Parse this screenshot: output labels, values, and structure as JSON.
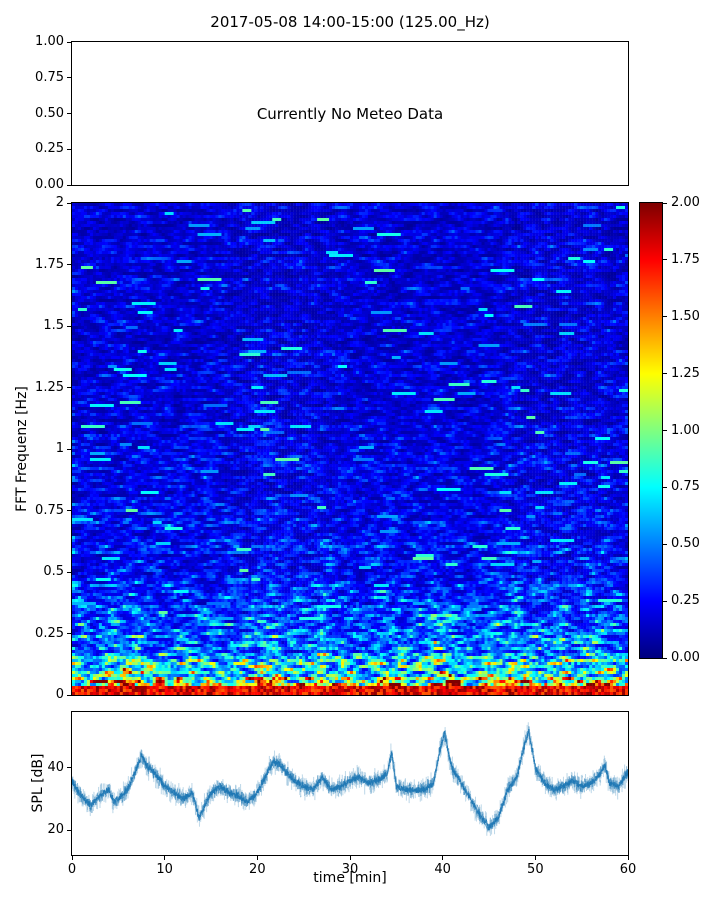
{
  "figure_title": "2017-05-08 14:00-15:00 (125.00_Hz)",
  "colors": {
    "line": "#1f77b4",
    "axes_edge": "#000000",
    "background": "#ffffff"
  },
  "chart_data": [
    {
      "type": "text",
      "panel": "meteo",
      "annotation": "Currently No Meteo Data",
      "ylim": [
        0.0,
        1.0
      ],
      "ytick_values": [
        1.0,
        0.75,
        0.5,
        0.25,
        0.0
      ],
      "yticklabels": [
        "1.00",
        "0.75",
        "0.50",
        "0.25",
        "0.00"
      ],
      "grid": false
    },
    {
      "type": "heatmap",
      "panel": "spectrogram",
      "ylabel": "FFT Frequenz [Hz]",
      "xlim": [
        0,
        60
      ],
      "ylim": [
        0,
        2
      ],
      "ytick_values": [
        2,
        1.75,
        1.5,
        1.25,
        1,
        0.75,
        0.5,
        0.25,
        0
      ],
      "yticklabels": [
        "2",
        "1.75",
        "1.5",
        "1.25",
        "1",
        "0.75",
        "0.5",
        "0.25",
        "0"
      ],
      "colormap": "jet",
      "clim": [
        0.0,
        2.0
      ],
      "colorbar_tick_values": [
        2.0,
        1.75,
        1.5,
        1.25,
        1.0,
        0.75,
        0.5,
        0.25,
        0.0
      ],
      "colorbar_ticklabels": [
        "2.00",
        "1.75",
        "1.50",
        "1.25",
        "1.00",
        "0.75",
        "0.50",
        "0.25",
        "0.00"
      ],
      "freq_profile": [
        [
          0,
          1.9
        ],
        [
          0.02,
          1.55
        ],
        [
          0.05,
          1.05
        ],
        [
          0.1,
          0.8
        ],
        [
          0.2,
          0.58
        ],
        [
          0.3,
          0.46
        ],
        [
          0.5,
          0.34
        ],
        [
          0.75,
          0.29
        ],
        [
          1.0,
          0.27
        ],
        [
          1.5,
          0.24
        ],
        [
          2.0,
          0.22
        ]
      ],
      "time_bursts": [
        {
          "c": 4,
          "w": 1.5,
          "a": 0.35
        },
        {
          "c": 7,
          "w": 2,
          "a": 0.55
        },
        {
          "c": 13,
          "w": 1,
          "a": 0.35
        },
        {
          "c": 21,
          "w": 2,
          "a": 0.5
        },
        {
          "c": 27,
          "w": 1.5,
          "a": 0.5
        },
        {
          "c": 34,
          "w": 1.5,
          "a": 0.4
        },
        {
          "c": 40,
          "w": 1.5,
          "a": 0.6
        },
        {
          "c": 48,
          "w": 2.5,
          "a": 0.6
        },
        {
          "c": 53,
          "w": 1,
          "a": 0.3
        },
        {
          "c": 57,
          "w": 1.5,
          "a": 0.5
        }
      ],
      "description": "FFT spectrogram: mostly 0.1-0.4 (dark/medium blue) above 0.5 Hz with sporadic cyan streaks; values rise toward low frequencies reaching 1.5-2.0 (orange/dark red) below 0.1 Hz; intermittent yellow/green bursts up to ~0.5 Hz."
    },
    {
      "type": "line",
      "panel": "spl",
      "ylabel": "SPL [dB]",
      "xlabel": "time [min]",
      "xlim": [
        0,
        60
      ],
      "ylim": [
        12,
        58
      ],
      "ytick_values": [
        40,
        20
      ],
      "yticklabels": [
        "40",
        "20"
      ],
      "xtick_values": [
        0,
        10,
        20,
        30,
        40,
        50,
        60
      ],
      "xticklabels": [
        "0",
        "10",
        "20",
        "30",
        "40",
        "50",
        "60"
      ],
      "series": [
        {
          "name": "SPL",
          "noise_band_db": 2.5,
          "anchors": [
            [
              0,
              36
            ],
            [
              0.5,
              33
            ],
            [
              1,
              31
            ],
            [
              2,
              28
            ],
            [
              3,
              31
            ],
            [
              4,
              33
            ],
            [
              4.5,
              29
            ],
            [
              5,
              30
            ],
            [
              6,
              33
            ],
            [
              7,
              40
            ],
            [
              7.5,
              44
            ],
            [
              8,
              41
            ],
            [
              9,
              38
            ],
            [
              10,
              34
            ],
            [
              11,
              32
            ],
            [
              12,
              30
            ],
            [
              13,
              32
            ],
            [
              13.7,
              24
            ],
            [
              14.2,
              27
            ],
            [
              15,
              32
            ],
            [
              16,
              34
            ],
            [
              17,
              32
            ],
            [
              18,
              31
            ],
            [
              19,
              29
            ],
            [
              20,
              32
            ],
            [
              21,
              38
            ],
            [
              21.7,
              42
            ],
            [
              22.5,
              41
            ],
            [
              23,
              39
            ],
            [
              24,
              36
            ],
            [
              25,
              34
            ],
            [
              26,
              33
            ],
            [
              27,
              37
            ],
            [
              28,
              33
            ],
            [
              29,
              34
            ],
            [
              30,
              36
            ],
            [
              31,
              37
            ],
            [
              32,
              35
            ],
            [
              33,
              36
            ],
            [
              34,
              38
            ],
            [
              34.5,
              45
            ],
            [
              35,
              34
            ],
            [
              36,
              33
            ],
            [
              37,
              33
            ],
            [
              38,
              33
            ],
            [
              39,
              35
            ],
            [
              39.8,
              47
            ],
            [
              40.2,
              51
            ],
            [
              41,
              40
            ],
            [
              42,
              35
            ],
            [
              43,
              30
            ],
            [
              44,
              25
            ],
            [
              45,
              21
            ],
            [
              46,
              24
            ],
            [
              47,
              33
            ],
            [
              48,
              37
            ],
            [
              48.8,
              47
            ],
            [
              49.3,
              52
            ],
            [
              50,
              40
            ],
            [
              51,
              35
            ],
            [
              52,
              33
            ],
            [
              53,
              34
            ],
            [
              54,
              36
            ],
            [
              55,
              34
            ],
            [
              56,
              35
            ],
            [
              57,
              38
            ],
            [
              57.5,
              41
            ],
            [
              58,
              35
            ],
            [
              59,
              34
            ],
            [
              60,
              39
            ]
          ]
        }
      ]
    }
  ]
}
